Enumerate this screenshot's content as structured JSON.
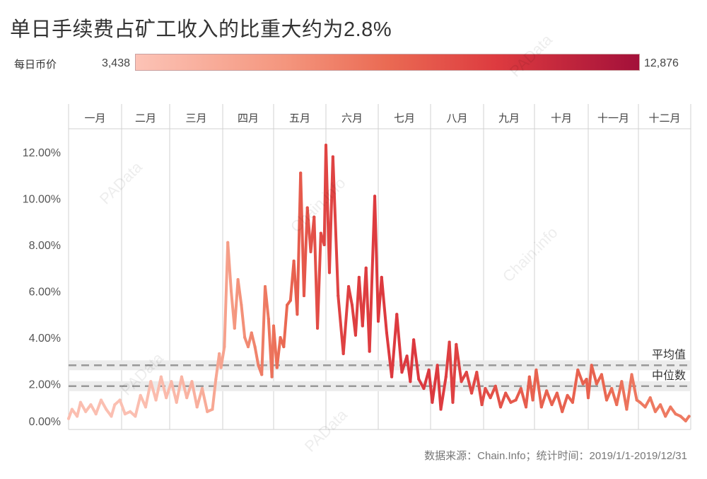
{
  "chart_data": {
    "type": "line",
    "title": "单日手续费占矿工收入的比重大约为2.8%",
    "color_legend": {
      "label": "每日币价",
      "min_label": "3,438",
      "max_label": "12,876",
      "min": 3438,
      "max": 12876,
      "colors": [
        "#fcc3b6",
        "#f4957d",
        "#ea6a53",
        "#dd3a3f",
        "#a3103a"
      ]
    },
    "months": [
      "一月",
      "二月",
      "三月",
      "四月",
      "五月",
      "六月",
      "七月",
      "八月",
      "九月",
      "十月",
      "十一月",
      "十二月"
    ],
    "y_ticks": [
      "0.00%",
      "2.00%",
      "4.00%",
      "6.00%",
      "8.00%",
      "10.00%",
      "12.00%"
    ],
    "y_tick_values": [
      0,
      2,
      4,
      6,
      8,
      10,
      12
    ],
    "ylim": [
      0,
      13
    ],
    "grid": "vertical month separators",
    "reference_lines": [
      {
        "label": "平均值",
        "value": 2.8
      },
      {
        "label": "中位数",
        "value": 1.9
      }
    ],
    "monthly_price_approx": [
      3700,
      3600,
      3900,
      5100,
      7800,
      10000,
      10500,
      10600,
      9600,
      8500,
      8600,
      7300
    ],
    "series": [
      {
        "points": [
          [
            "2019-01-01",
            0.5
          ],
          [
            "2019-01-03",
            0.9
          ],
          [
            "2019-01-06",
            0.6
          ],
          [
            "2019-01-08",
            1.2
          ],
          [
            "2019-01-11",
            0.8
          ],
          [
            "2019-01-14",
            1.1
          ],
          [
            "2019-01-17",
            0.7
          ],
          [
            "2019-01-20",
            1.3
          ],
          [
            "2019-01-23",
            0.9
          ],
          [
            "2019-01-26",
            0.6
          ],
          [
            "2019-01-28",
            1.1
          ],
          [
            "2019-01-31",
            1.3
          ],
          [
            "2019-02-03",
            0.7
          ],
          [
            "2019-02-06",
            0.8
          ],
          [
            "2019-02-09",
            0.6
          ],
          [
            "2019-02-12",
            1.5
          ],
          [
            "2019-02-15",
            1.0
          ],
          [
            "2019-02-18",
            2.1
          ],
          [
            "2019-02-21",
            1.3
          ],
          [
            "2019-02-24",
            2.3
          ],
          [
            "2019-02-27",
            1.4
          ],
          [
            "2019-03-02",
            2.1
          ],
          [
            "2019-03-05",
            1.2
          ],
          [
            "2019-03-08",
            2.3
          ],
          [
            "2019-03-11",
            1.4
          ],
          [
            "2019-03-14",
            2.1
          ],
          [
            "2019-03-17",
            1.0
          ],
          [
            "2019-03-20",
            1.8
          ],
          [
            "2019-03-23",
            0.8
          ],
          [
            "2019-03-26",
            0.9
          ],
          [
            "2019-03-28",
            2.2
          ],
          [
            "2019-03-30",
            3.3
          ],
          [
            "2019-03-31",
            2.7
          ],
          [
            "2019-04-02",
            3.6
          ],
          [
            "2019-04-04",
            8.1
          ],
          [
            "2019-04-06",
            6.0
          ],
          [
            "2019-04-08",
            4.4
          ],
          [
            "2019-04-10",
            6.5
          ],
          [
            "2019-04-12",
            5.4
          ],
          [
            "2019-04-14",
            4.0
          ],
          [
            "2019-04-16",
            3.6
          ],
          [
            "2019-04-18",
            4.2
          ],
          [
            "2019-04-20",
            3.6
          ],
          [
            "2019-04-22",
            2.8
          ],
          [
            "2019-04-24",
            2.4
          ],
          [
            "2019-04-26",
            6.2
          ],
          [
            "2019-04-28",
            4.8
          ],
          [
            "2019-04-30",
            2.3
          ],
          [
            "2019-05-01",
            4.5
          ],
          [
            "2019-05-03",
            2.7
          ],
          [
            "2019-05-05",
            4.0
          ],
          [
            "2019-05-07",
            3.6
          ],
          [
            "2019-05-09",
            5.4
          ],
          [
            "2019-05-11",
            5.6
          ],
          [
            "2019-05-13",
            7.3
          ],
          [
            "2019-05-15",
            5.0
          ],
          [
            "2019-05-17",
            11.1
          ],
          [
            "2019-05-19",
            5.8
          ],
          [
            "2019-05-21",
            9.6
          ],
          [
            "2019-05-23",
            7.7
          ],
          [
            "2019-05-25",
            9.2
          ],
          [
            "2019-05-27",
            4.4
          ],
          [
            "2019-05-29",
            8.5
          ],
          [
            "2019-05-31",
            8.0
          ],
          [
            "2019-06-01",
            12.3
          ],
          [
            "2019-06-03",
            6.8
          ],
          [
            "2019-06-05",
            11.8
          ],
          [
            "2019-06-08",
            5.8
          ],
          [
            "2019-06-11",
            3.3
          ],
          [
            "2019-06-14",
            6.2
          ],
          [
            "2019-06-16",
            5.4
          ],
          [
            "2019-06-18",
            4.1
          ],
          [
            "2019-06-20",
            6.6
          ],
          [
            "2019-06-22",
            4.5
          ],
          [
            "2019-06-24",
            7.0
          ],
          [
            "2019-06-26",
            3.4
          ],
          [
            "2019-06-29",
            10.1
          ],
          [
            "2019-07-01",
            4.7
          ],
          [
            "2019-07-03",
            6.6
          ],
          [
            "2019-07-06",
            4.2
          ],
          [
            "2019-07-09",
            2.3
          ],
          [
            "2019-07-12",
            5.0
          ],
          [
            "2019-07-15",
            2.5
          ],
          [
            "2019-07-18",
            3.2
          ],
          [
            "2019-07-20",
            2.1
          ],
          [
            "2019-07-22",
            3.9
          ],
          [
            "2019-07-25",
            2.2
          ],
          [
            "2019-07-28",
            1.8
          ],
          [
            "2019-07-31",
            2.6
          ],
          [
            "2019-08-02",
            1.2
          ],
          [
            "2019-08-05",
            2.8
          ],
          [
            "2019-08-07",
            0.9
          ],
          [
            "2019-08-10",
            2.3
          ],
          [
            "2019-08-12",
            3.8
          ],
          [
            "2019-08-14",
            1.2
          ],
          [
            "2019-08-16",
            3.7
          ],
          [
            "2019-08-19",
            2.1
          ],
          [
            "2019-08-22",
            2.5
          ],
          [
            "2019-08-25",
            1.6
          ],
          [
            "2019-08-28",
            2.5
          ],
          [
            "2019-08-31",
            1.1
          ],
          [
            "2019-09-02",
            1.8
          ],
          [
            "2019-09-05",
            1.4
          ],
          [
            "2019-09-08",
            1.9
          ],
          [
            "2019-09-11",
            1.0
          ],
          [
            "2019-09-14",
            1.6
          ],
          [
            "2019-09-17",
            1.2
          ],
          [
            "2019-09-20",
            1.3
          ],
          [
            "2019-09-23",
            1.8
          ],
          [
            "2019-09-26",
            1.0
          ],
          [
            "2019-09-28",
            2.3
          ],
          [
            "2019-09-30",
            1.3
          ],
          [
            "2019-10-02",
            2.6
          ],
          [
            "2019-10-05",
            1.0
          ],
          [
            "2019-10-08",
            1.7
          ],
          [
            "2019-10-11",
            1.1
          ],
          [
            "2019-10-14",
            1.6
          ],
          [
            "2019-10-17",
            0.8
          ],
          [
            "2019-10-20",
            1.5
          ],
          [
            "2019-10-23",
            1.2
          ],
          [
            "2019-10-26",
            2.6
          ],
          [
            "2019-10-29",
            2.0
          ],
          [
            "2019-10-31",
            2.2
          ],
          [
            "2019-11-01",
            1.4
          ],
          [
            "2019-11-03",
            2.8
          ],
          [
            "2019-11-06",
            2.0
          ],
          [
            "2019-11-09",
            2.4
          ],
          [
            "2019-11-12",
            1.3
          ],
          [
            "2019-11-15",
            1.8
          ],
          [
            "2019-11-18",
            1.1
          ],
          [
            "2019-11-21",
            2.1
          ],
          [
            "2019-11-24",
            0.9
          ],
          [
            "2019-11-27",
            2.4
          ],
          [
            "2019-11-30",
            1.3
          ],
          [
            "2019-12-02",
            1.2
          ],
          [
            "2019-12-05",
            1.0
          ],
          [
            "2019-12-08",
            1.4
          ],
          [
            "2019-12-11",
            0.8
          ],
          [
            "2019-12-14",
            1.1
          ],
          [
            "2019-12-17",
            0.6
          ],
          [
            "2019-12-20",
            1.0
          ],
          [
            "2019-12-23",
            0.7
          ],
          [
            "2019-12-26",
            0.6
          ],
          [
            "2019-12-29",
            0.4
          ],
          [
            "2019-12-31",
            0.6
          ]
        ]
      }
    ],
    "source": "数据来源：Chain.Info；统计时间：2019/1/1-2019/12/31",
    "watermarks": [
      "PAData",
      "Chain.info"
    ]
  }
}
